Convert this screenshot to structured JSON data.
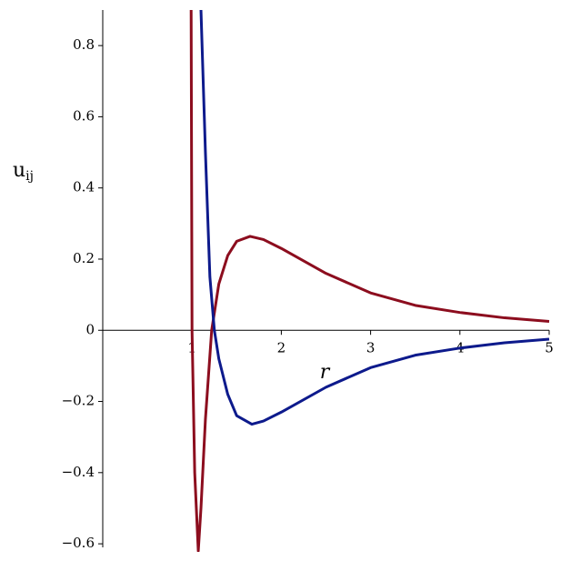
{
  "chart_data": {
    "type": "line",
    "xlabel": "r",
    "ylabel": {
      "main": "u",
      "sub": "ij"
    },
    "xlim": [
      0,
      5
    ],
    "ylim": [
      -0.61,
      0.9
    ],
    "xticks": [
      1,
      2,
      3,
      4,
      5
    ],
    "yticks": [
      {
        "value": -0.6,
        "label": "−0.6"
      },
      {
        "value": -0.4,
        "label": "−0.4"
      },
      {
        "value": -0.2,
        "label": "−0.2"
      },
      0,
      0.2,
      0.4,
      0.6,
      0.8
    ],
    "series": [
      {
        "color": "#8c0d1e",
        "x": [
          0.99,
          1.0,
          1.03,
          1.07,
          1.1,
          1.15,
          1.22,
          1.3,
          1.4,
          1.5,
          1.65,
          1.8,
          2.0,
          2.5,
          3.0,
          3.5,
          4.0,
          4.5,
          5.0
        ],
        "values": [
          0.9,
          0.0,
          -0.4,
          -0.62,
          -0.5,
          -0.25,
          0.0,
          0.13,
          0.21,
          0.25,
          0.264,
          0.255,
          0.23,
          0.16,
          0.105,
          0.07,
          0.05,
          0.035,
          0.025
        ]
      },
      {
        "color": "#0d1a8c",
        "x": [
          1.1,
          1.15,
          1.2,
          1.25,
          1.3,
          1.4,
          1.5,
          1.67,
          1.8,
          2.0,
          2.5,
          3.0,
          3.5,
          4.0,
          4.5,
          5.0
        ],
        "values": [
          0.9,
          0.5,
          0.15,
          0.0,
          -0.08,
          -0.18,
          -0.24,
          -0.264,
          -0.255,
          -0.23,
          -0.16,
          -0.105,
          -0.07,
          -0.05,
          -0.035,
          -0.025
        ]
      }
    ]
  }
}
